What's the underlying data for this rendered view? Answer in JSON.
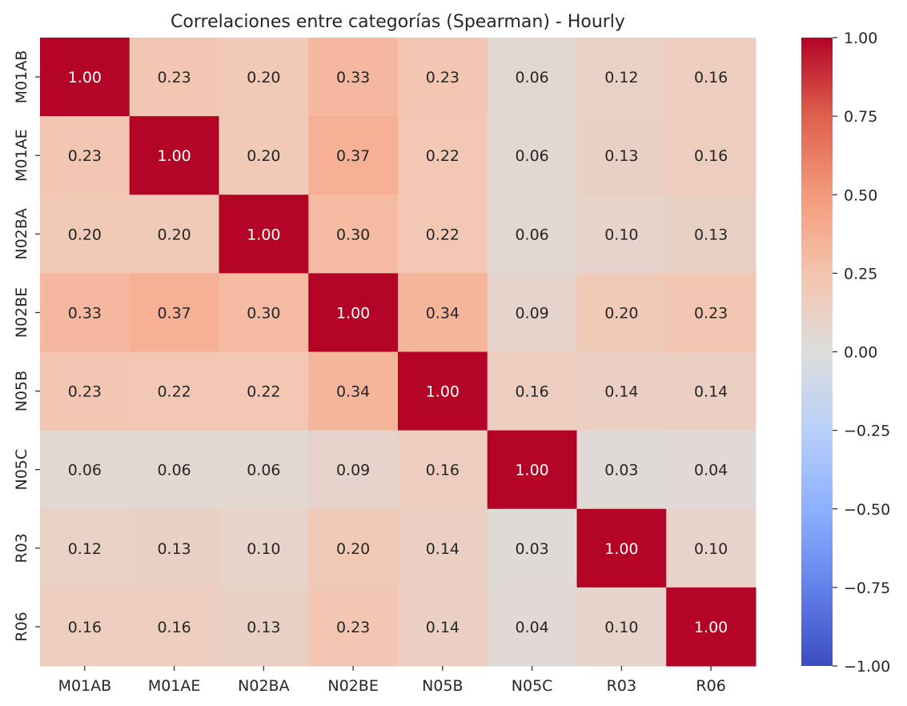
{
  "chart_data": {
    "type": "heatmap",
    "title": "Correlaciones entre categorías (Spearman) - Hourly",
    "xlabel": "",
    "ylabel": "",
    "x_categories": [
      "M01AB",
      "M01AE",
      "N02BA",
      "N02BE",
      "N05B",
      "N05C",
      "R03",
      "R06"
    ],
    "y_categories": [
      "M01AB",
      "M01AE",
      "N02BA",
      "N02BE",
      "N05B",
      "N05C",
      "R03",
      "R06"
    ],
    "values": [
      [
        1.0,
        0.23,
        0.2,
        0.33,
        0.23,
        0.06,
        0.12,
        0.16
      ],
      [
        0.23,
        1.0,
        0.2,
        0.37,
        0.22,
        0.06,
        0.13,
        0.16
      ],
      [
        0.2,
        0.2,
        1.0,
        0.3,
        0.22,
        0.06,
        0.1,
        0.13
      ],
      [
        0.33,
        0.37,
        0.3,
        1.0,
        0.34,
        0.09,
        0.2,
        0.23
      ],
      [
        0.23,
        0.22,
        0.22,
        0.34,
        1.0,
        0.16,
        0.14,
        0.14
      ],
      [
        0.06,
        0.06,
        0.06,
        0.09,
        0.16,
        1.0,
        0.03,
        0.04
      ],
      [
        0.12,
        0.13,
        0.1,
        0.2,
        0.14,
        0.03,
        1.0,
        0.1
      ],
      [
        0.16,
        0.16,
        0.13,
        0.23,
        0.14,
        0.04,
        0.1,
        1.0
      ]
    ],
    "value_format": "0.00",
    "colormap": "coolwarm",
    "vmin": -1.0,
    "vmax": 1.0,
    "colorbar_ticks": [
      "1.00",
      "0.75",
      "0.50",
      "0.25",
      "0.00",
      "−0.25",
      "−0.50",
      "−0.75",
      "−1.00"
    ],
    "colorbar_tick_values": [
      1.0,
      0.75,
      0.5,
      0.25,
      0.0,
      -0.25,
      -0.5,
      -0.75,
      -1.0
    ],
    "colors": {
      "cold": "#3b4cc0",
      "neutral": "#dddddd",
      "hot": "#b40426",
      "text_light": "#ffffff",
      "text_dark": "#262626"
    }
  }
}
